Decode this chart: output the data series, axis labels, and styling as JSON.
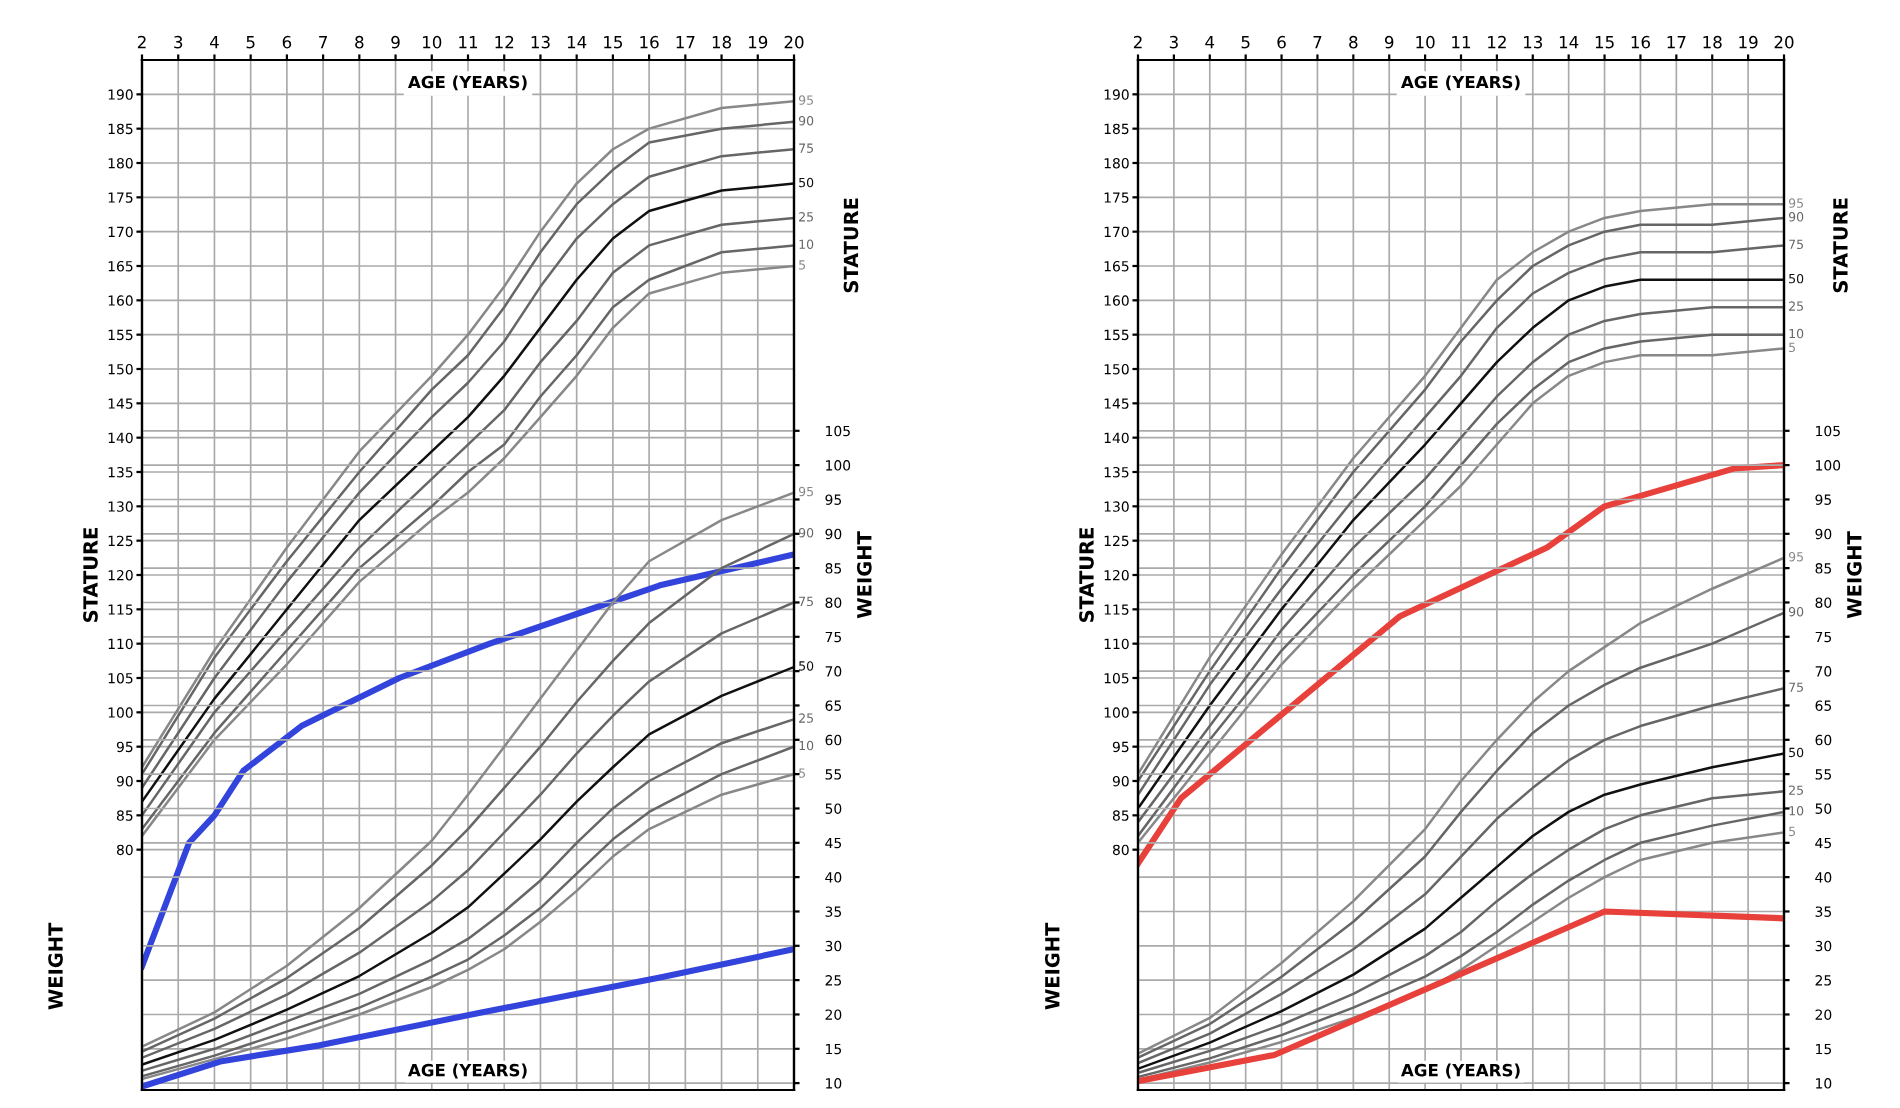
{
  "chart_data": [
    {
      "type": "line",
      "xlabel": "AGE (YEARS)",
      "ylabel": "STATURE",
      "y2label": "WEIGHT",
      "annotations": [
        "STATURE",
        "WEIGHT",
        "AGE (YEARS)"
      ],
      "x": [
        2,
        4,
        6,
        8,
        10,
        11,
        12,
        13,
        14,
        15,
        16,
        18,
        20
      ],
      "xlim": [
        2,
        20
      ],
      "xticks": [
        2,
        3,
        4,
        5,
        6,
        7,
        8,
        9,
        10,
        11,
        12,
        13,
        14,
        15,
        16,
        17,
        18,
        19,
        20
      ],
      "ylim": [
        45,
        195
      ],
      "yticks": [
        80,
        85,
        90,
        95,
        100,
        105,
        110,
        115,
        120,
        125,
        130,
        135,
        140,
        145,
        150,
        155,
        160,
        165,
        170,
        175,
        180,
        185,
        190
      ],
      "y2lim": [
        9,
        159
      ],
      "y2ticks": [
        10,
        15,
        20,
        25,
        30,
        35,
        40,
        45,
        50,
        55,
        60,
        65,
        70,
        75,
        80,
        85,
        90,
        95,
        100,
        105
      ],
      "grid": true,
      "legend": false,
      "marker": "none",
      "line_style": "solid",
      "series": [
        {
          "name": "95",
          "color": "#888888",
          "values": [
            92,
            109,
            124,
            138,
            149,
            155,
            162,
            170,
            177,
            182,
            185,
            188,
            189
          ]
        },
        {
          "name": "90",
          "color": "#666666",
          "values": [
            91,
            108,
            122,
            135,
            147,
            152,
            159,
            167,
            174,
            179,
            183,
            185,
            186
          ]
        },
        {
          "name": "75",
          "color": "#666666",
          "values": [
            89,
            105,
            119,
            132,
            143,
            148,
            154,
            162,
            169,
            174,
            178,
            181,
            182
          ]
        },
        {
          "name": "50",
          "color": "#111111",
          "values": [
            87,
            102,
            115,
            128,
            138,
            143,
            149,
            156,
            163,
            169,
            173,
            176,
            177
          ]
        },
        {
          "name": "25",
          "color": "#666666",
          "values": [
            85,
            100,
            112,
            124,
            134,
            139,
            144,
            151,
            157,
            164,
            168,
            171,
            172
          ]
        },
        {
          "name": "10",
          "color": "#666666",
          "values": [
            83,
            97,
            109,
            121,
            130,
            135,
            139,
            146,
            152,
            159,
            163,
            167,
            168
          ]
        },
        {
          "name": "5",
          "color": "#888888",
          "values": [
            82,
            96,
            107,
            119,
            128,
            132,
            137,
            143,
            149,
            156,
            161,
            164,
            165
          ]
        },
        {
          "name": "95",
          "color": "#888888",
          "axis": "y2",
          "values": [
            15.3,
            20.3,
            27.1,
            35.5,
            45.3,
            52,
            59,
            66,
            73,
            80,
            86,
            92,
            96
          ]
        },
        {
          "name": "90",
          "color": "#666666",
          "axis": "y2",
          "values": [
            14.6,
            19.4,
            25.3,
            32.6,
            41.7,
            47,
            53,
            59,
            65.5,
            71.5,
            77,
            85,
            90
          ]
        },
        {
          "name": "75",
          "color": "#666666",
          "axis": "y2",
          "values": [
            13.7,
            17.9,
            22.9,
            29,
            36.5,
            41,
            46.5,
            52,
            58,
            63.5,
            68.5,
            75.5,
            80
          ]
        },
        {
          "name": "50",
          "color": "#111111",
          "axis": "y2",
          "values": [
            12.7,
            16.3,
            20.7,
            25.6,
            31.9,
            35.6,
            40.5,
            45.5,
            51,
            56,
            60.8,
            66.4,
            70.6
          ]
        },
        {
          "name": "25",
          "color": "#666666",
          "axis": "y2",
          "values": [
            11.8,
            15,
            19,
            23,
            28,
            31,
            35,
            39.5,
            45,
            50,
            54,
            59.5,
            63
          ]
        },
        {
          "name": "10",
          "color": "#666666",
          "axis": "y2",
          "values": [
            11,
            14,
            17.5,
            21,
            25.5,
            28,
            31.5,
            35.5,
            40.5,
            45.5,
            49.5,
            55,
            59
          ]
        },
        {
          "name": "5",
          "color": "#888888",
          "axis": "y2",
          "values": [
            10.6,
            13.5,
            16.5,
            20,
            24,
            26.5,
            29.5,
            33.5,
            38,
            43,
            47,
            52,
            55
          ]
        },
        {
          "color": "#3344dd",
          "x": [
            2,
            3.3,
            4,
            4.8,
            6.4,
            9.1,
            11.6,
            14.1,
            16.3,
            20
          ],
          "values": [
            63,
            81,
            85,
            91.5,
            98,
            105,
            110,
            114.5,
            118.5,
            123
          ]
        },
        {
          "color": "#3344dd",
          "axis": "y2",
          "x": [
            2,
            4.2,
            6.9,
            11.3,
            16.3,
            20
          ],
          "values": [
            9.5,
            13.2,
            15.5,
            20.2,
            25.4,
            29.5
          ]
        }
      ]
    },
    {
      "type": "line",
      "xlabel": "AGE (YEARS)",
      "ylabel": "STATURE",
      "y2label": "WEIGHT",
      "annotations": [
        "STATURE",
        "WEIGHT",
        "AGE (YEARS)"
      ],
      "x": [
        2,
        4,
        6,
        8,
        10,
        11,
        12,
        13,
        14,
        15,
        16,
        18,
        20
      ],
      "xlim": [
        2,
        20
      ],
      "xticks": [
        2,
        3,
        4,
        5,
        6,
        7,
        8,
        9,
        10,
        11,
        12,
        13,
        14,
        15,
        16,
        17,
        18,
        19,
        20
      ],
      "ylim": [
        45,
        195
      ],
      "yticks": [
        80,
        85,
        90,
        95,
        100,
        105,
        110,
        115,
        120,
        125,
        130,
        135,
        140,
        145,
        150,
        155,
        160,
        165,
        170,
        175,
        180,
        185,
        190
      ],
      "y2lim": [
        9,
        159
      ],
      "y2ticks": [
        10,
        15,
        20,
        25,
        30,
        35,
        40,
        45,
        50,
        55,
        60,
        65,
        70,
        75,
        80,
        85,
        90,
        95,
        100,
        105
      ],
      "grid": true,
      "legend": false,
      "marker": "none",
      "line_style": "solid",
      "series": [
        {
          "name": "95",
          "color": "#888888",
          "values": [
            91,
            108,
            123,
            137,
            149,
            156,
            163,
            167,
            170,
            172,
            173,
            174,
            174
          ]
        },
        {
          "name": "90",
          "color": "#666666",
          "values": [
            90,
            106,
            121,
            135,
            147,
            154,
            160,
            165,
            168,
            170,
            171,
            171,
            172
          ]
        },
        {
          "name": "75",
          "color": "#666666",
          "values": [
            88,
            104,
            118,
            131,
            143,
            149,
            156,
            161,
            164,
            166,
            167,
            167,
            168
          ]
        },
        {
          "name": "50",
          "color": "#111111",
          "values": [
            86,
            101,
            115,
            128,
            139,
            145,
            151,
            156,
            160,
            162,
            163,
            163,
            163
          ]
        },
        {
          "name": "25",
          "color": "#666666",
          "values": [
            84,
            98,
            112,
            124,
            134,
            140,
            146,
            151,
            155,
            157,
            158,
            159,
            159
          ]
        },
        {
          "name": "10",
          "color": "#666666",
          "values": [
            82,
            96,
            109,
            120,
            130,
            136,
            142,
            147,
            151,
            153,
            154,
            155,
            155
          ]
        },
        {
          "name": "5",
          "color": "#888888",
          "values": [
            81,
            94,
            107,
            118,
            128,
            133,
            139,
            145,
            149,
            151,
            152,
            152,
            153
          ]
        },
        {
          "name": "95",
          "color": "#888888",
          "axis": "y2",
          "values": [
            14.3,
            19.5,
            27.5,
            36.5,
            47,
            54,
            60,
            65.5,
            70,
            73.5,
            77,
            82,
            86.5
          ]
        },
        {
          "name": "90",
          "color": "#666666",
          "axis": "y2",
          "values": [
            13.7,
            18.6,
            25.5,
            33.5,
            43,
            49.5,
            55.5,
            61,
            65,
            68,
            70.5,
            74,
            78.5
          ]
        },
        {
          "name": "75",
          "color": "#666666",
          "axis": "y2",
          "values": [
            12.9,
            17.2,
            23,
            29.5,
            37.5,
            43,
            48.5,
            53,
            57,
            60,
            62,
            65,
            67.5
          ]
        },
        {
          "name": "50",
          "color": "#111111",
          "axis": "y2",
          "values": [
            12.1,
            15.9,
            20.5,
            25.8,
            32.5,
            37,
            41.5,
            46,
            49.5,
            52,
            53.5,
            56,
            58
          ]
        },
        {
          "name": "25",
          "color": "#666666",
          "axis": "y2",
          "values": [
            11.5,
            14.7,
            18.5,
            23,
            28.5,
            32,
            36.5,
            40.5,
            44,
            47,
            49,
            51.5,
            52.5
          ]
        },
        {
          "name": "10",
          "color": "#666666",
          "axis": "y2",
          "values": [
            10.9,
            13.6,
            17,
            21,
            25.5,
            28.5,
            32,
            36,
            39.5,
            42.5,
            45,
            47.5,
            49.5
          ]
        },
        {
          "name": "5",
          "color": "#888888",
          "axis": "y2",
          "values": [
            10.5,
            13,
            16,
            19.5,
            23.5,
            26.5,
            30,
            33.5,
            37,
            40,
            42.5,
            45,
            46.5
          ]
        },
        {
          "color": "#e8403a",
          "x": [
            2,
            3.2,
            9.3,
            13.4,
            15,
            18.6,
            20
          ],
          "values": [
            78,
            87.5,
            114,
            124,
            130,
            135.5,
            136
          ]
        },
        {
          "color": "#e8403a",
          "axis": "y2",
          "x": [
            2,
            5.8,
            15,
            20
          ],
          "values": [
            10.3,
            14.1,
            35,
            34
          ]
        }
      ]
    }
  ]
}
